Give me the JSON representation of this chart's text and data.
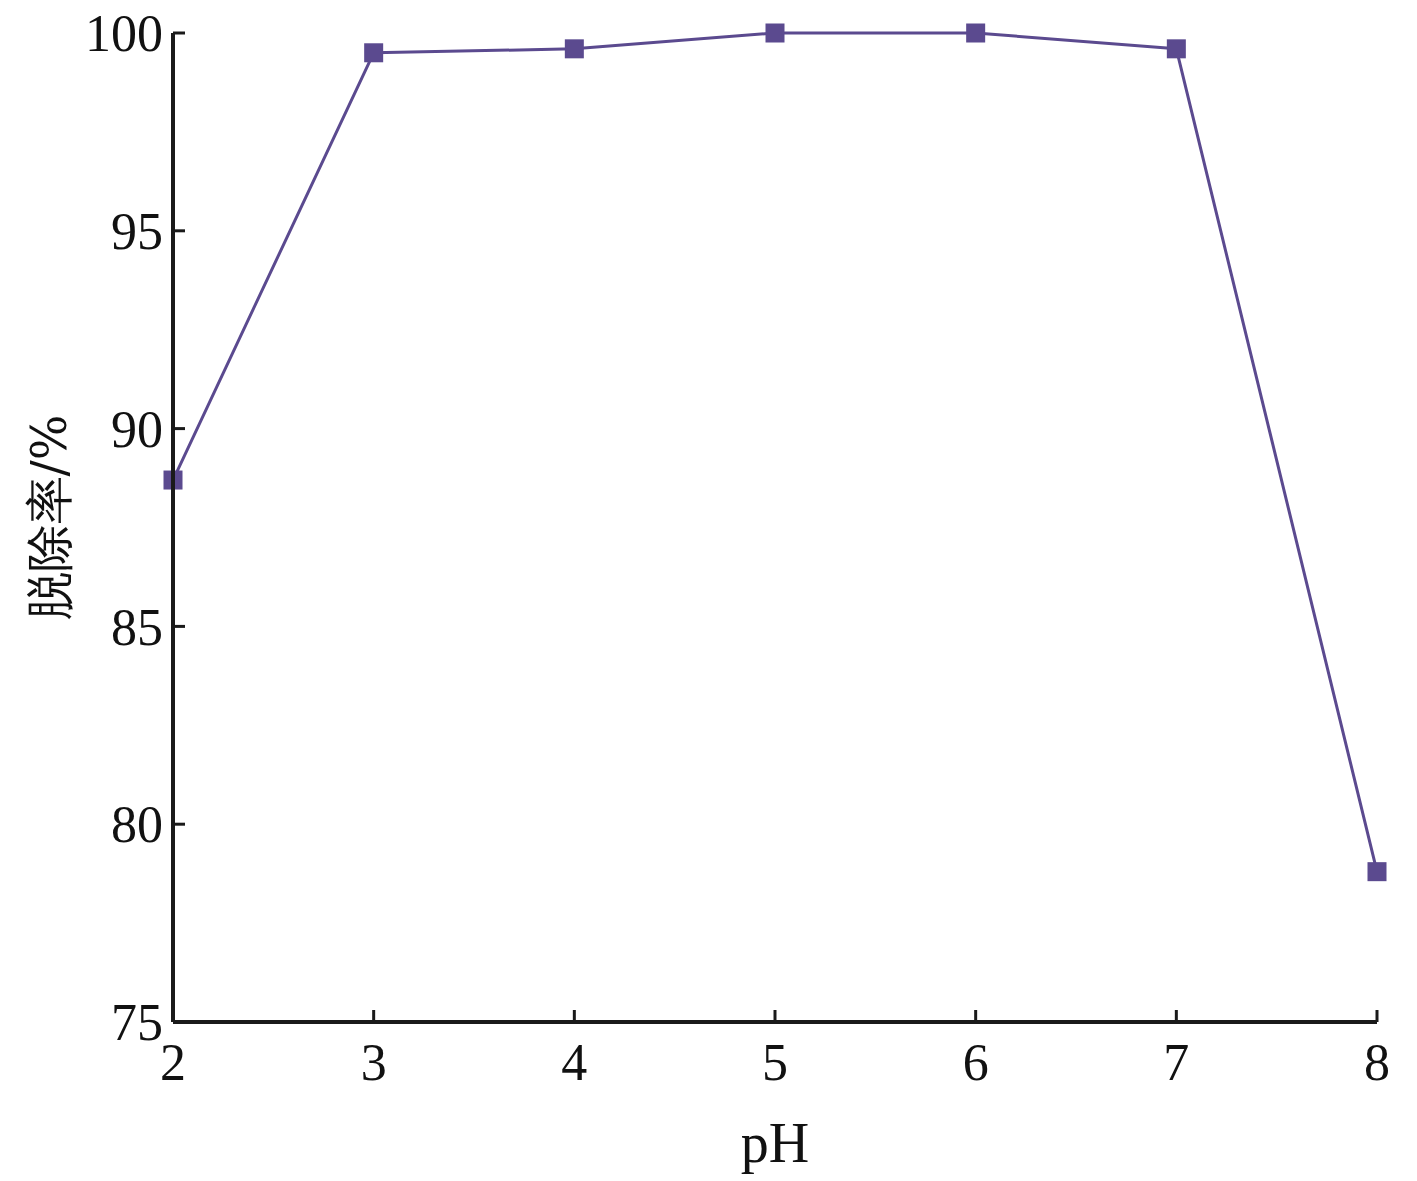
{
  "chart_data": {
    "type": "line",
    "xlabel": "pH",
    "ylabel": "脱除率/%",
    "x": [
      2,
      3,
      4,
      5,
      6,
      7,
      8
    ],
    "series": [
      {
        "color": "#5b4a8f",
        "values": [
          88.7,
          99.5,
          99.6,
          100,
          100,
          99.6,
          78.8
        ]
      }
    ],
    "xlim": [
      2,
      8
    ],
    "xticks": [
      2,
      3,
      4,
      5,
      6,
      7,
      8
    ],
    "ylim": [
      75,
      100
    ],
    "yticks": [
      75,
      80,
      85,
      90,
      95,
      100
    ],
    "grid": false,
    "marker": "square",
    "line_style": "solid"
  }
}
